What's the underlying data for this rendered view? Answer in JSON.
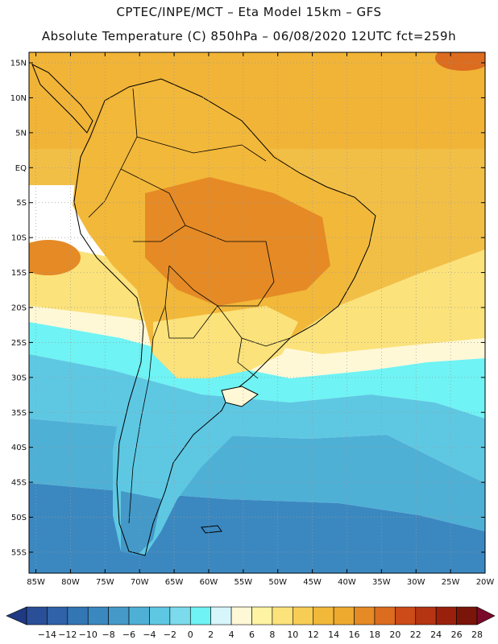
{
  "header": {
    "line1": "CPTEC/INPE/MCT –  Eta Model 15km – GFS",
    "line2": "Absolute Temperature (C) 850hPa – 06/08/2020 12UTC fct=259h"
  },
  "axes": {
    "lat_labels": [
      "15N",
      "10N",
      "5N",
      "EQ",
      "5S",
      "10S",
      "15S",
      "20S",
      "25S",
      "30S",
      "35S",
      "40S",
      "45S",
      "50S",
      "55S"
    ],
    "lon_labels": [
      "85W",
      "80W",
      "75W",
      "70W",
      "65W",
      "60W",
      "55W",
      "50W",
      "45W",
      "40W",
      "35W",
      "30W",
      "25W",
      "20W"
    ]
  },
  "colorbar": {
    "labels": [
      "-14",
      "-12",
      "-10",
      "-8",
      "-6",
      "-4",
      "-2",
      "0",
      "2",
      "4",
      "6",
      "8",
      "10",
      "12",
      "14",
      "16",
      "18",
      "20",
      "22",
      "24",
      "26",
      "28"
    ],
    "colors": [
      "#2a4f97",
      "#2f62a8",
      "#3376b4",
      "#3b88c0",
      "#4499c8",
      "#4fb0d6",
      "#5ec8e3",
      "#7bdbed",
      "#6ff3f4",
      "#d7f6fb",
      "#fff8d7",
      "#fdf3a3",
      "#fbe27b",
      "#f7cd55",
      "#f2b83a",
      "#edaa2f",
      "#e58a25",
      "#dc6c1f",
      "#cc4b18",
      "#b53411",
      "#99210c",
      "#7a150a"
    ],
    "left_arrow": "#1f3a82",
    "right_arrow": "#7a0a2b"
  },
  "map": {
    "ocean_zones": [
      "#f1b437",
      "#f2bf46",
      "#fbe27b",
      "#fff8d7",
      "#6ff3f4",
      "#5ec8e3",
      "#4fb0d6",
      "#3b88c0"
    ],
    "land_colors": {
      "hot": "#e58a25",
      "warm": "#f2b83a",
      "mild": "#fbe27b",
      "cool": "#5ec8e3",
      "cold": "#4499c8"
    }
  }
}
